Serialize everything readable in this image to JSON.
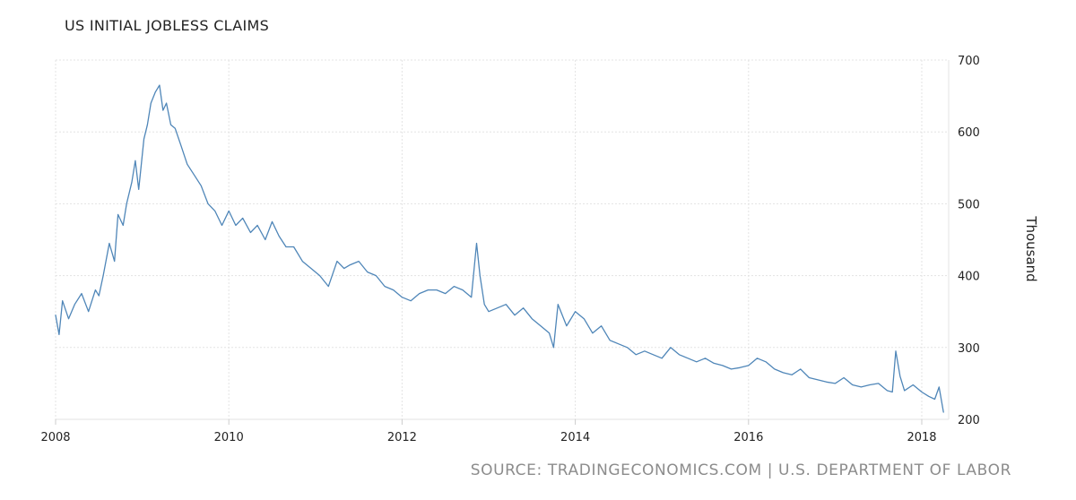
{
  "title": "US INITIAL JOBLESS CLAIMS",
  "source": "SOURCE: TRADINGECONOMICS.COM | U.S. DEPARTMENT OF LABOR",
  "colors": {
    "line": "#4f86b8",
    "grid": "#e3e3e3",
    "axis": "#cccccc"
  },
  "chart_data": {
    "type": "line",
    "title": "US INITIAL JOBLESS CLAIMS",
    "ylabel": "Thousand",
    "xlabel": "",
    "xlim": [
      2008,
      2018.25
    ],
    "ylim": [
      200,
      700
    ],
    "x_ticks": [
      "2008",
      "2010",
      "2012",
      "2014",
      "2016",
      "2018"
    ],
    "y_ticks": [
      "200",
      "300",
      "400",
      "500",
      "600",
      "700"
    ],
    "y_axis_position": "right",
    "grid": true,
    "legend": "none",
    "series": [
      {
        "x": [
          2008.0,
          2008.04,
          2008.08,
          2008.15,
          2008.22,
          2008.3,
          2008.38,
          2008.46,
          2008.5,
          2008.55,
          2008.62,
          2008.68,
          2008.72,
          2008.78,
          2008.82,
          2008.88,
          2008.92,
          2008.96,
          2009.02,
          2009.06,
          2009.1,
          2009.15,
          2009.2,
          2009.24,
          2009.28,
          2009.33,
          2009.38,
          2009.45,
          2009.52,
          2009.6,
          2009.68,
          2009.76,
          2009.84,
          2009.92,
          2010.0,
          2010.08,
          2010.16,
          2010.25,
          2010.33,
          2010.42,
          2010.5,
          2010.58,
          2010.66,
          2010.75,
          2010.85,
          2010.95,
          2011.05,
          2011.15,
          2011.25,
          2011.33,
          2011.4,
          2011.5,
          2011.6,
          2011.7,
          2011.8,
          2011.9,
          2012.0,
          2012.1,
          2012.2,
          2012.3,
          2012.4,
          2012.5,
          2012.6,
          2012.7,
          2012.8,
          2012.86,
          2012.9,
          2012.95,
          2013.0,
          2013.1,
          2013.2,
          2013.3,
          2013.4,
          2013.5,
          2013.6,
          2013.7,
          2013.75,
          2013.8,
          2013.9,
          2014.0,
          2014.1,
          2014.2,
          2014.3,
          2014.4,
          2014.5,
          2014.6,
          2014.7,
          2014.8,
          2014.9,
          2015.0,
          2015.1,
          2015.2,
          2015.3,
          2015.4,
          2015.5,
          2015.6,
          2015.7,
          2015.8,
          2015.9,
          2016.0,
          2016.1,
          2016.2,
          2016.3,
          2016.4,
          2016.5,
          2016.6,
          2016.7,
          2016.8,
          2016.9,
          2017.0,
          2017.1,
          2017.2,
          2017.3,
          2017.4,
          2017.5,
          2017.6,
          2017.66,
          2017.7,
          2017.75,
          2017.8,
          2017.9,
          2018.0,
          2018.08,
          2018.15,
          2018.2,
          2018.25
        ],
        "values": [
          345,
          318,
          365,
          340,
          360,
          375,
          350,
          380,
          372,
          400,
          445,
          420,
          485,
          470,
          500,
          530,
          560,
          520,
          590,
          610,
          640,
          655,
          665,
          630,
          640,
          610,
          605,
          580,
          555,
          540,
          525,
          500,
          490,
          470,
          490,
          470,
          480,
          460,
          470,
          450,
          475,
          455,
          440,
          440,
          420,
          410,
          400,
          385,
          420,
          410,
          415,
          420,
          405,
          400,
          385,
          380,
          370,
          365,
          375,
          380,
          380,
          375,
          385,
          380,
          370,
          445,
          400,
          360,
          350,
          355,
          360,
          345,
          355,
          340,
          330,
          320,
          300,
          360,
          330,
          350,
          340,
          320,
          330,
          310,
          305,
          300,
          290,
          295,
          290,
          285,
          300,
          290,
          285,
          280,
          285,
          278,
          275,
          270,
          272,
          275,
          285,
          280,
          270,
          265,
          262,
          270,
          258,
          255,
          252,
          250,
          258,
          248,
          245,
          248,
          250,
          240,
          238,
          295,
          260,
          240,
          248,
          238,
          232,
          228,
          245,
          210
        ]
      }
    ]
  }
}
